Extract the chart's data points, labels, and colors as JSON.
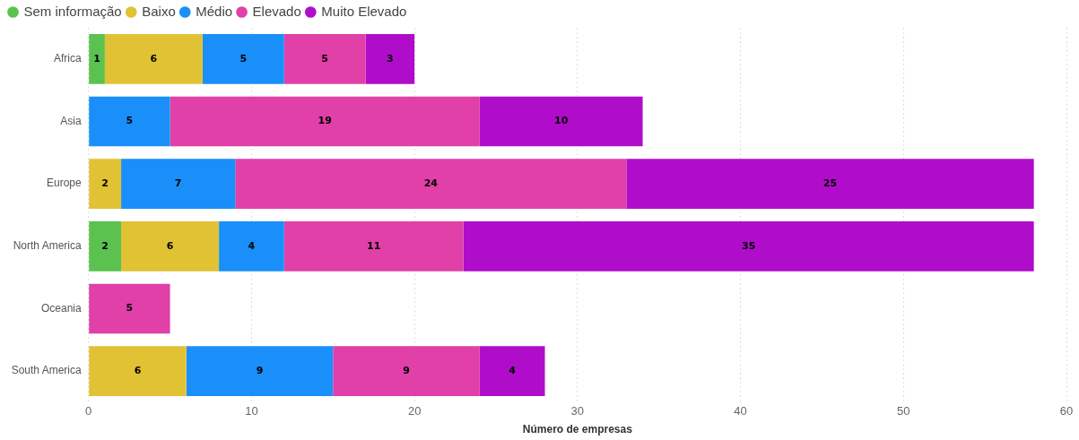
{
  "chart_data": {
    "type": "bar",
    "orientation": "horizontal",
    "stacked": true,
    "xlabel": "Número de empresas",
    "categories": [
      "Africa",
      "Asia",
      "Europe",
      "North America",
      "Oceania",
      "South America"
    ],
    "series": [
      {
        "name": "Sem informação",
        "color": "#5bc24f",
        "values": [
          1,
          null,
          null,
          2,
          null,
          null
        ]
      },
      {
        "name": "Baixo",
        "color": "#e0c234",
        "values": [
          6,
          null,
          2,
          6,
          null,
          6
        ]
      },
      {
        "name": "Médio",
        "color": "#1a8ffa",
        "values": [
          5,
          5,
          7,
          4,
          null,
          9
        ]
      },
      {
        "name": "Elevado",
        "color": "#e040a8",
        "values": [
          5,
          19,
          24,
          11,
          5,
          9
        ]
      },
      {
        "name": "Muito Elevado",
        "color": "#b00dcb",
        "values": [
          3,
          10,
          25,
          35,
          null,
          4
        ]
      }
    ],
    "xlim": [
      0,
      60
    ],
    "xticks": [
      0,
      10,
      20,
      30,
      40,
      50,
      60
    ],
    "grid": "x",
    "legend": "top left",
    "data_labels": true
  }
}
